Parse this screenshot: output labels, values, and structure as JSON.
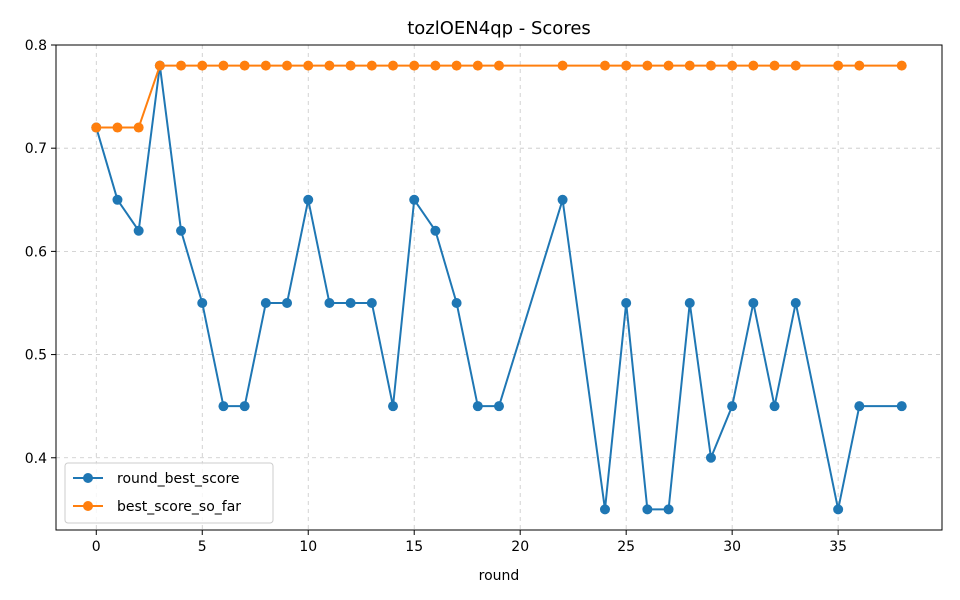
{
  "chart_data": {
    "type": "line",
    "title": "tozlOEN4qp - Scores",
    "xlabel": "round",
    "ylabel": "",
    "xlim": [
      -1.9,
      39.9
    ],
    "ylim": [
      0.33,
      0.8
    ],
    "xticks": [
      0,
      5,
      10,
      15,
      20,
      25,
      30,
      35
    ],
    "yticks": [
      0.4,
      0.5,
      0.6,
      0.7,
      0.8
    ],
    "xtick_labels": [
      "0",
      "5",
      "10",
      "15",
      "20",
      "25",
      "30",
      "35"
    ],
    "ytick_labels": [
      "0.4",
      "0.5",
      "0.6",
      "0.7",
      "0.8"
    ],
    "grid": true,
    "legend_position": "lower-left",
    "x": [
      0,
      1,
      2,
      3,
      4,
      5,
      6,
      7,
      8,
      9,
      10,
      11,
      12,
      13,
      14,
      15,
      16,
      17,
      18,
      19,
      22,
      24,
      25,
      26,
      27,
      28,
      29,
      30,
      31,
      32,
      33,
      35,
      36,
      38
    ],
    "series": [
      {
        "name": "round_best_score",
        "color": "#1f77b4",
        "values": [
          0.72,
          0.65,
          0.62,
          0.78,
          0.62,
          0.55,
          0.45,
          0.45,
          0.55,
          0.55,
          0.65,
          0.55,
          0.55,
          0.55,
          0.45,
          0.65,
          0.62,
          0.55,
          0.45,
          0.45,
          0.65,
          0.35,
          0.55,
          0.35,
          0.35,
          0.55,
          0.4,
          0.45,
          0.55,
          0.45,
          0.55,
          0.35,
          0.45,
          0.45
        ]
      },
      {
        "name": "best_score_so_far",
        "color": "#ff7f0e",
        "values": [
          0.72,
          0.72,
          0.72,
          0.78,
          0.78,
          0.78,
          0.78,
          0.78,
          0.78,
          0.78,
          0.78,
          0.78,
          0.78,
          0.78,
          0.78,
          0.78,
          0.78,
          0.78,
          0.78,
          0.78,
          0.78,
          0.78,
          0.78,
          0.78,
          0.78,
          0.78,
          0.78,
          0.78,
          0.78,
          0.78,
          0.78,
          0.78,
          0.78,
          0.78
        ]
      }
    ]
  }
}
